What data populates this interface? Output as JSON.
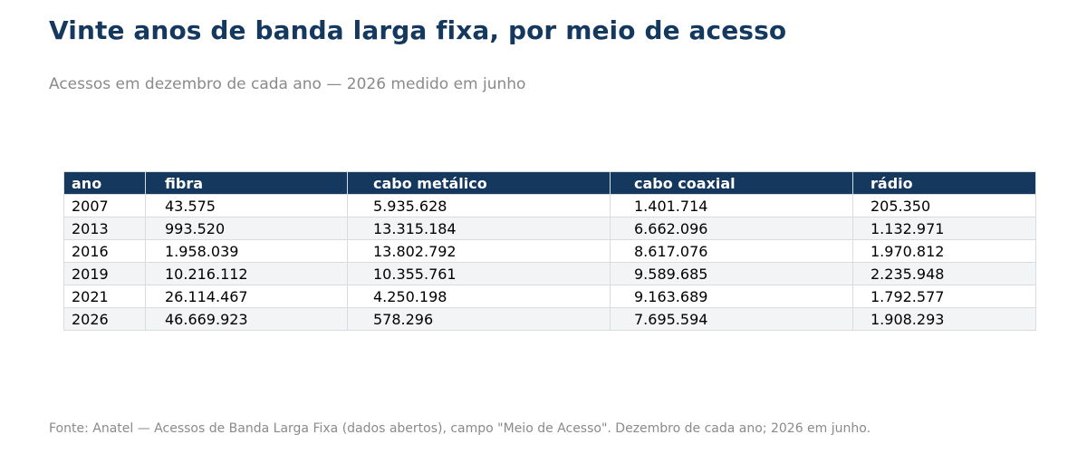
{
  "title": "Vinte anos de banda larga fixa, por meio de acesso",
  "subtitle": "Acessos em dezembro de cada ano — 2026 medido em junho",
  "source": "Fonte: Anatel — Acessos de Banda Larga Fixa (dados abertos), campo \"Meio de Acesso\". Dezembro de cada ano; 2026 em junho.",
  "colors": {
    "header_bg": "#14385e",
    "header_text": "#ffffff",
    "title": "#14385e",
    "muted_text": "#8a8a8a",
    "row_alt": "#f3f4f6",
    "grid": "#d9dcdf"
  },
  "chart_data": {
    "type": "table",
    "columns": [
      "ano",
      "fibra",
      "cabo metálico",
      "cabo coaxial",
      "rádio"
    ],
    "rows": [
      [
        "2007",
        "43.575",
        "5.935.628",
        "1.401.714",
        "205.350"
      ],
      [
        "2013",
        "993.520",
        "13.315.184",
        "6.662.096",
        "1.132.971"
      ],
      [
        "2016",
        "1.958.039",
        "13.802.792",
        "8.617.076",
        "1.970.812"
      ],
      [
        "2019",
        "10.216.112",
        "10.355.761",
        "9.589.685",
        "2.235.948"
      ],
      [
        "2021",
        "26.114.467",
        "4.250.198",
        "9.163.689",
        "1.792.577"
      ],
      [
        "2026",
        "46.669.923",
        "578.296",
        "7.695.594",
        "1.908.293"
      ]
    ]
  }
}
